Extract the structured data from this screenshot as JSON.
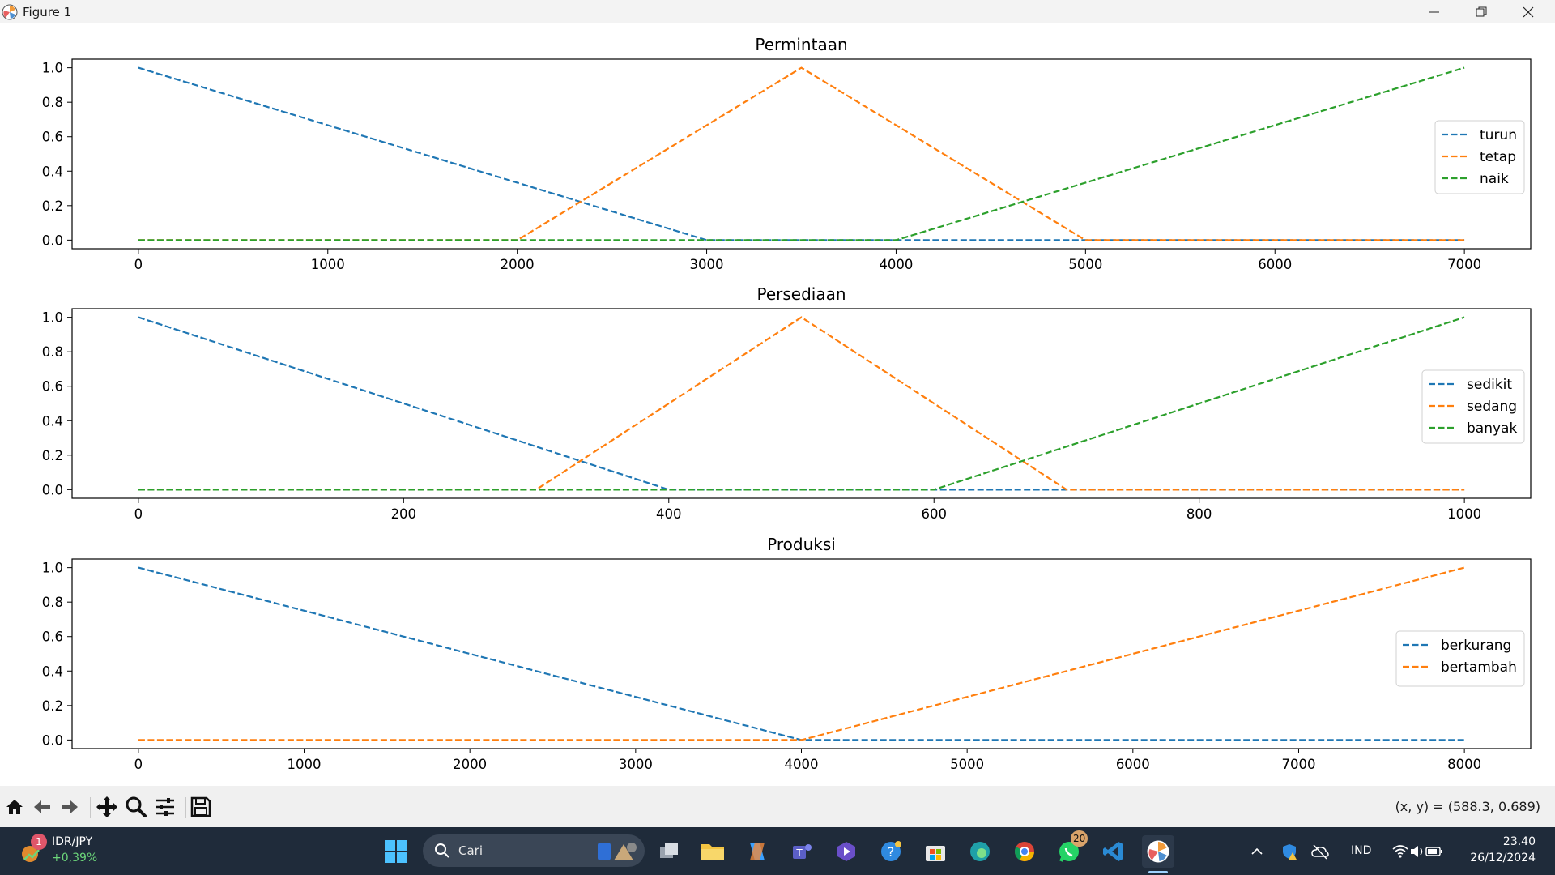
{
  "window": {
    "title": "Figure 1"
  },
  "chart_data": [
    {
      "type": "line",
      "title": "Permintaan",
      "xlim": [
        -350,
        7350
      ],
      "ylim": [
        -0.05,
        1.05
      ],
      "xticks": [
        0,
        1000,
        2000,
        3000,
        4000,
        5000,
        6000,
        7000
      ],
      "yticks": [
        0.0,
        0.2,
        0.4,
        0.6,
        0.8,
        1.0
      ],
      "legend": "center-right",
      "grid": false,
      "series": [
        {
          "name": "turun",
          "color": "#1f77b4",
          "x": [
            0,
            3000,
            7000
          ],
          "y": [
            1,
            0,
            0
          ]
        },
        {
          "name": "tetap",
          "color": "#ff7f0e",
          "x": [
            0,
            2000,
            3500,
            5000,
            7000
          ],
          "y": [
            0,
            0,
            1,
            0,
            0
          ]
        },
        {
          "name": "naik",
          "color": "#2ca02c",
          "x": [
            0,
            4000,
            7000
          ],
          "y": [
            0,
            0,
            1
          ]
        }
      ]
    },
    {
      "type": "line",
      "title": "Persediaan",
      "xlim": [
        -50,
        1050
      ],
      "ylim": [
        -0.05,
        1.05
      ],
      "xticks": [
        0,
        200,
        400,
        600,
        800,
        1000
      ],
      "yticks": [
        0.0,
        0.2,
        0.4,
        0.6,
        0.8,
        1.0
      ],
      "legend": "center-right",
      "grid": false,
      "series": [
        {
          "name": "sedikit",
          "color": "#1f77b4",
          "x": [
            0,
            400,
            1000
          ],
          "y": [
            1,
            0,
            0
          ]
        },
        {
          "name": "sedang",
          "color": "#ff7f0e",
          "x": [
            0,
            300,
            500,
            700,
            1000
          ],
          "y": [
            0,
            0,
            1,
            0,
            0
          ]
        },
        {
          "name": "banyak",
          "color": "#2ca02c",
          "x": [
            0,
            600,
            1000
          ],
          "y": [
            0,
            0,
            1
          ]
        }
      ]
    },
    {
      "type": "line",
      "title": "Produksi",
      "xlim": [
        -400,
        8400
      ],
      "ylim": [
        -0.05,
        1.05
      ],
      "xticks": [
        0,
        1000,
        2000,
        3000,
        4000,
        5000,
        6000,
        7000,
        8000
      ],
      "yticks": [
        0.0,
        0.2,
        0.4,
        0.6,
        0.8,
        1.0
      ],
      "legend": "center-right",
      "grid": false,
      "series": [
        {
          "name": "berkurang",
          "color": "#1f77b4",
          "x": [
            0,
            4000,
            8000
          ],
          "y": [
            1,
            0,
            0
          ]
        },
        {
          "name": "bertambah",
          "color": "#ff7f0e",
          "x": [
            0,
            4000,
            8000
          ],
          "y": [
            0,
            0,
            1
          ]
        }
      ]
    }
  ],
  "toolbar": {
    "buttons": [
      "home-icon",
      "back-arrow-icon",
      "forward-arrow-icon",
      "pan-icon",
      "zoom-icon",
      "configure-subplots-icon",
      "save-icon"
    ],
    "coords": "(x, y) = (588.3, 0.689)"
  },
  "taskbar": {
    "ticker_name": "IDR/JPY",
    "ticker_change": "+0,39%",
    "ticker_badge": "1",
    "search_placeholder": "Cari",
    "whatsapp_badge": "20",
    "language": "IND",
    "time": "23.40",
    "date": "26/12/2024"
  }
}
